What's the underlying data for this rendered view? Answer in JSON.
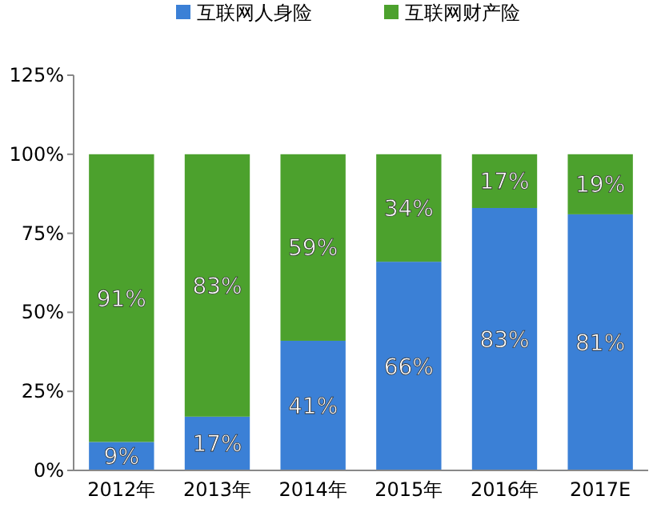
{
  "chart_data": {
    "type": "bar",
    "stacked": true,
    "categories": [
      "2012年",
      "2013年",
      "2014年",
      "2015年",
      "2016年",
      "2017E"
    ],
    "series": [
      {
        "name": "互联网人身险",
        "color": "#3b80d6",
        "values": [
          9,
          17,
          41,
          66,
          83,
          81
        ],
        "value_labels": [
          "9%",
          "17%",
          "41%",
          "66%",
          "83%",
          "81%"
        ]
      },
      {
        "name": "互联网财产险",
        "color": "#4ca12d",
        "values": [
          91,
          83,
          59,
          34,
          17,
          19
        ],
        "value_labels": [
          "91%",
          "83%",
          "59%",
          "34%",
          "17%",
          "19%"
        ]
      }
    ],
    "ylim": [
      0,
      125
    ],
    "yticks": [
      {
        "value": 0,
        "label": "0%"
      },
      {
        "value": 25,
        "label": "25%"
      },
      {
        "value": 50,
        "label": "50%"
      },
      {
        "value": 75,
        "label": "75%"
      },
      {
        "value": 100,
        "label": "100%"
      },
      {
        "value": 125,
        "label": "125%"
      }
    ],
    "legend": "top",
    "grid": false
  }
}
